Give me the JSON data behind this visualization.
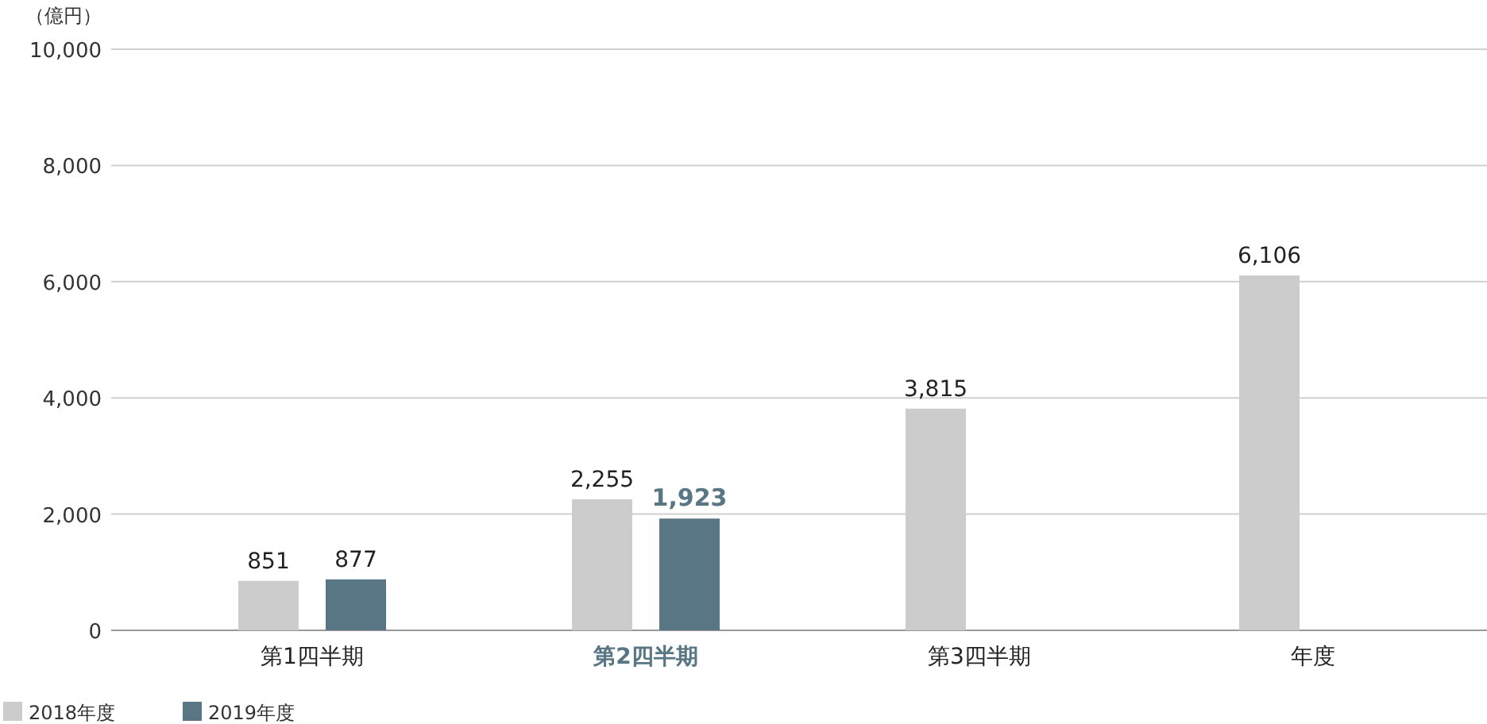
{
  "chart_data": {
    "type": "bar",
    "ylabel": "（億円）",
    "categories": [
      "第1四半期",
      "第2四半期",
      "第3四半期",
      "年度"
    ],
    "series": [
      {
        "name": "2018年度",
        "color": "#cccccc",
        "values": [
          851,
          2255,
          3815,
          6106
        ],
        "value_labels": [
          "851",
          "2,255",
          "3,815",
          "6,106"
        ]
      },
      {
        "name": "2019年度",
        "color": "#587684",
        "values": [
          877,
          1923,
          null,
          null
        ],
        "value_labels": [
          "877",
          "1,923",
          null,
          null
        ]
      }
    ],
    "ylim": [
      0,
      10000
    ],
    "yticks": [
      0,
      {
        "value": 2000,
        "label": "2,000"
      },
      {
        "value": 4000,
        "label": "4,000"
      },
      {
        "value": 6000,
        "label": "6,000"
      },
      {
        "value": 8000,
        "label": "8,000"
      },
      {
        "value": 10000,
        "label": "10,000"
      }
    ],
    "grid": "y",
    "legend": "bottom left"
  }
}
